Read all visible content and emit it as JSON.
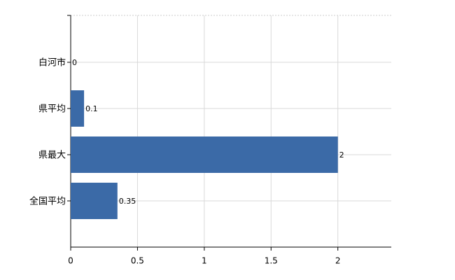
{
  "chart_data": {
    "type": "bar",
    "orientation": "horizontal",
    "categories": [
      "白河市",
      "県平均",
      "県最大",
      "全国平均"
    ],
    "values": [
      0,
      0.1,
      2,
      0.35
    ],
    "color": "#3b6aa7",
    "xlim": [
      0,
      2.4
    ],
    "xticks": [
      0,
      0.5,
      1,
      1.5,
      2
    ],
    "grid": true
  }
}
